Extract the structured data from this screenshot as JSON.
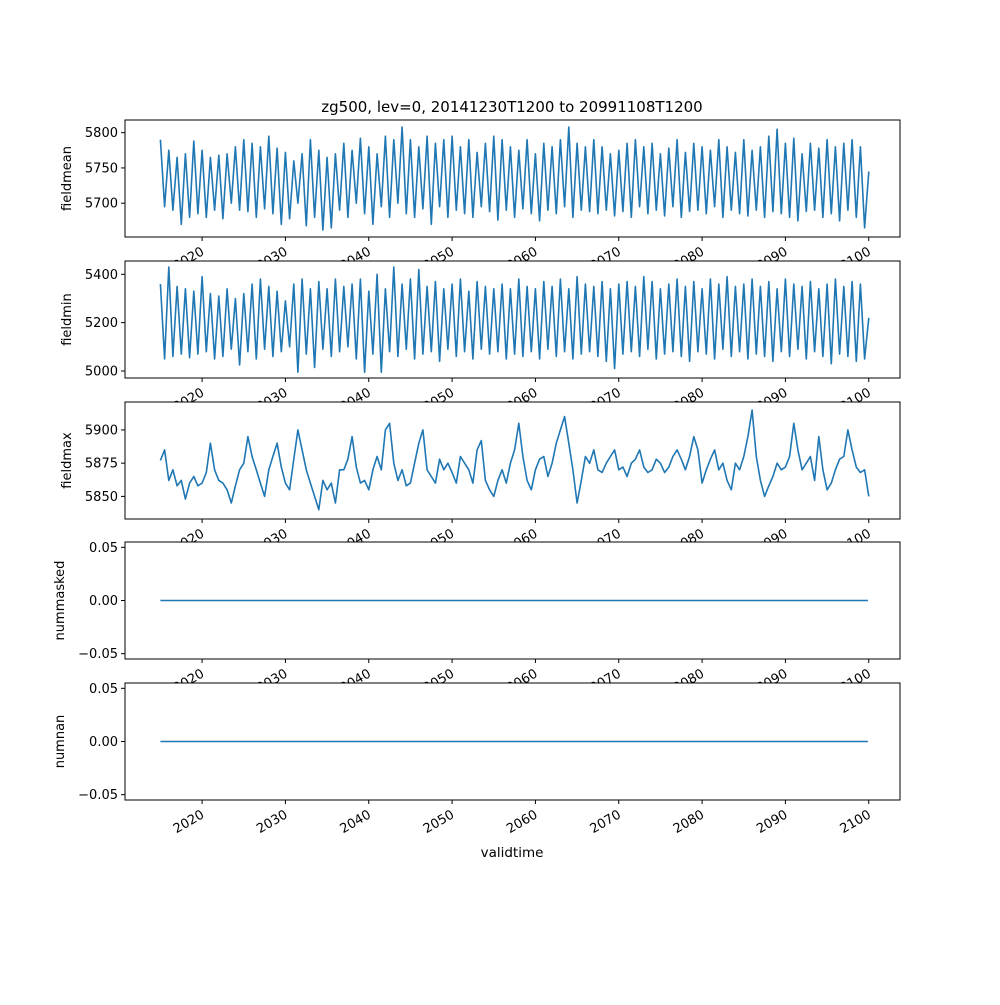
{
  "chart_data": {
    "type": "line",
    "title": "zg500, lev=0, 20141230T1200 to 20991108T1200",
    "xlabel": "validtime",
    "xlim": [
      2010.75,
      2103.75
    ],
    "xticks": [
      2020,
      2030,
      2040,
      2050,
      2060,
      2070,
      2080,
      2090,
      2100
    ],
    "xtick_labels": [
      "2020",
      "2030",
      "2040",
      "2050",
      "2060",
      "2070",
      "2080",
      "2090",
      "2100"
    ],
    "line_color": "#1f77b4",
    "grid": false,
    "subplots": [
      {
        "ylabel": "fieldmean",
        "ylim": [
          5652,
          5818
        ],
        "yticks": [
          5700,
          5750,
          5800
        ],
        "ytick_labels": [
          "5700",
          "5750",
          "5800"
        ],
        "x_start": 2015.0,
        "x_step": 0.5,
        "values": [
          5790,
          5695,
          5775,
          5690,
          5765,
          5670,
          5770,
          5680,
          5788,
          5685,
          5775,
          5680,
          5765,
          5690,
          5768,
          5678,
          5770,
          5700,
          5780,
          5690,
          5790,
          5688,
          5785,
          5680,
          5780,
          5692,
          5795,
          5685,
          5778,
          5670,
          5772,
          5678,
          5760,
          5700,
          5770,
          5668,
          5790,
          5680,
          5775,
          5662,
          5765,
          5665,
          5770,
          5690,
          5785,
          5680,
          5775,
          5700,
          5792,
          5685,
          5780,
          5670,
          5770,
          5695,
          5795,
          5680,
          5790,
          5700,
          5808,
          5685,
          5790,
          5680,
          5780,
          5692,
          5795,
          5670,
          5785,
          5695,
          5790,
          5680,
          5795,
          5690,
          5780,
          5685,
          5790,
          5680,
          5772,
          5695,
          5785,
          5688,
          5795,
          5676,
          5790,
          5690,
          5780,
          5680,
          5775,
          5692,
          5790,
          5685,
          5770,
          5675,
          5785,
          5690,
          5780,
          5685,
          5790,
          5695,
          5808,
          5680,
          5785,
          5690,
          5780,
          5688,
          5790,
          5685,
          5780,
          5690,
          5770,
          5682,
          5775,
          5688,
          5785,
          5680,
          5790,
          5695,
          5780,
          5685,
          5785,
          5690,
          5770,
          5682,
          5778,
          5695,
          5790,
          5680,
          5772,
          5688,
          5785,
          5690,
          5780,
          5685,
          5775,
          5695,
          5790,
          5680,
          5780,
          5690,
          5772,
          5685,
          5790,
          5682,
          5775,
          5690,
          5780,
          5680,
          5795,
          5688,
          5805,
          5685,
          5785,
          5680,
          5792,
          5675,
          5770,
          5688,
          5785,
          5690,
          5778,
          5680,
          5790,
          5685,
          5780,
          5675,
          5785,
          5690,
          5790,
          5680,
          5780,
          5665,
          5745
        ]
      },
      {
        "ylabel": "fieldmin",
        "ylim": [
          4971,
          5455
        ],
        "yticks": [
          5000,
          5200,
          5400
        ],
        "ytick_labels": [
          "5000",
          "5200",
          "5400"
        ],
        "x_start": 2015.0,
        "x_step": 0.5,
        "values": [
          5360,
          5050,
          5430,
          5060,
          5350,
          5070,
          5340,
          5055,
          5330,
          5070,
          5390,
          5080,
          5320,
          5050,
          5310,
          5060,
          5340,
          5090,
          5300,
          5025,
          5320,
          5080,
          5360,
          5050,
          5380,
          5090,
          5350,
          5060,
          5330,
          5080,
          5290,
          5100,
          5360,
          4995,
          5380,
          5070,
          5340,
          5015,
          5370,
          5090,
          5340,
          5060,
          5380,
          5080,
          5350,
          5100,
          5360,
          5050,
          5380,
          4995,
          5330,
          5070,
          5400,
          4995,
          5340,
          5080,
          5430,
          5060,
          5360,
          5090,
          5380,
          5050,
          5420,
          5070,
          5350,
          5080,
          5370,
          5040,
          5340,
          5090,
          5360,
          5060,
          5380,
          5080,
          5330,
          5050,
          5370,
          5090,
          5350,
          5070,
          5340,
          5080,
          5360,
          5050,
          5340,
          5070,
          5380,
          5060,
          5350,
          5080,
          5340,
          5050,
          5370,
          5090,
          5350,
          5060,
          5380,
          5080,
          5340,
          5050,
          5390,
          5070,
          5360,
          5080,
          5350,
          5060,
          5370,
          5040,
          5340,
          5010,
          5360,
          5070,
          5370,
          5080,
          5350,
          5060,
          5390,
          5090,
          5370,
          5050,
          5340,
          5070,
          5360,
          5080,
          5380,
          5060,
          5350,
          5040,
          5370,
          5080,
          5340,
          5070,
          5380,
          5050,
          5360,
          5090,
          5390,
          5060,
          5350,
          5080,
          5360,
          5050,
          5380,
          5070,
          5350,
          5060,
          5370,
          5040,
          5340,
          5080,
          5380,
          5060,
          5360,
          5090,
          5350,
          5050,
          5370,
          5080,
          5340,
          5060,
          5360,
          5030,
          5380,
          5070,
          5350,
          5060,
          5370,
          5040,
          5360,
          5050,
          5220
        ]
      },
      {
        "ylabel": "fieldmax",
        "ylim": [
          5833,
          5921
        ],
        "yticks": [
          5850,
          5875,
          5900
        ],
        "ytick_labels": [
          "5850",
          "5875",
          "5900"
        ],
        "x_start": 2015.0,
        "x_step": 0.5,
        "values": [
          5877,
          5885,
          5862,
          5870,
          5858,
          5862,
          5848,
          5860,
          5865,
          5858,
          5860,
          5868,
          5890,
          5870,
          5862,
          5860,
          5855,
          5845,
          5858,
          5870,
          5875,
          5895,
          5880,
          5870,
          5860,
          5850,
          5870,
          5880,
          5890,
          5872,
          5860,
          5855,
          5878,
          5900,
          5885,
          5870,
          5860,
          5850,
          5840,
          5862,
          5855,
          5860,
          5845,
          5870,
          5870,
          5878,
          5895,
          5872,
          5860,
          5862,
          5855,
          5870,
          5880,
          5870,
          5900,
          5905,
          5875,
          5862,
          5870,
          5858,
          5860,
          5875,
          5890,
          5900,
          5870,
          5865,
          5860,
          5878,
          5870,
          5875,
          5868,
          5860,
          5880,
          5875,
          5870,
          5860,
          5885,
          5892,
          5862,
          5855,
          5850,
          5862,
          5870,
          5860,
          5875,
          5885,
          5905,
          5880,
          5862,
          5855,
          5870,
          5878,
          5880,
          5865,
          5875,
          5890,
          5900,
          5910,
          5890,
          5870,
          5845,
          5862,
          5880,
          5875,
          5885,
          5870,
          5868,
          5875,
          5880,
          5885,
          5870,
          5872,
          5865,
          5875,
          5878,
          5885,
          5872,
          5868,
          5870,
          5878,
          5875,
          5868,
          5872,
          5880,
          5885,
          5878,
          5870,
          5880,
          5895,
          5885,
          5860,
          5870,
          5878,
          5885,
          5870,
          5875,
          5862,
          5855,
          5875,
          5870,
          5880,
          5895,
          5915,
          5880,
          5862,
          5850,
          5858,
          5865,
          5875,
          5870,
          5872,
          5880,
          5905,
          5885,
          5870,
          5875,
          5880,
          5862,
          5895,
          5870,
          5855,
          5860,
          5870,
          5878,
          5880,
          5900,
          5885,
          5872,
          5868,
          5870,
          5850
        ]
      },
      {
        "ylabel": "nummasked",
        "ylim": [
          -0.055,
          0.055
        ],
        "yticks": [
          -0.05,
          0.0,
          0.05
        ],
        "ytick_labels": [
          "−0.05",
          "0.00",
          "0.05"
        ],
        "x_start": 2015.0,
        "x_step": 84.9,
        "values": [
          0,
          0
        ]
      },
      {
        "ylabel": "numnan",
        "ylim": [
          -0.055,
          0.055
        ],
        "yticks": [
          -0.05,
          0.0,
          0.05
        ],
        "ytick_labels": [
          "−0.05",
          "0.00",
          "0.05"
        ],
        "x_start": 2015.0,
        "x_step": 84.9,
        "values": [
          0,
          0
        ]
      }
    ]
  }
}
